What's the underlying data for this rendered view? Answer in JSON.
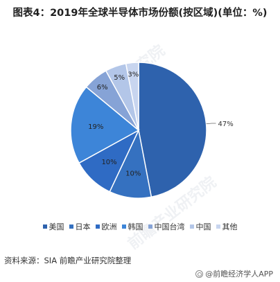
{
  "title": "图表4：2019年全球半导体市场份额(按区域)(单位：%)",
  "source": "资料来源：SIA 前瞻产业研究院整理",
  "brand": "@前瞻经济学人APP",
  "watermark": "前瞻产业研究院",
  "chart_data": {
    "type": "pie",
    "categories": [
      "美国",
      "日本",
      "欧洲",
      "韩国",
      "中国台湾",
      "中国",
      "其他"
    ],
    "values": [
      47,
      10,
      10,
      19,
      6,
      5,
      3
    ],
    "labels": [
      "47%",
      "10%",
      "10%",
      "19%",
      "6%",
      "5%",
      "3%"
    ],
    "colors": [
      "#2e62ad",
      "#3571c0",
      "#2f6bc4",
      "#3d85d8",
      "#86a3d6",
      "#b3c6e8",
      "#c8d5ef"
    ],
    "legend_position": "bottom",
    "start_angle_deg": 0,
    "direction": "clockwise"
  }
}
